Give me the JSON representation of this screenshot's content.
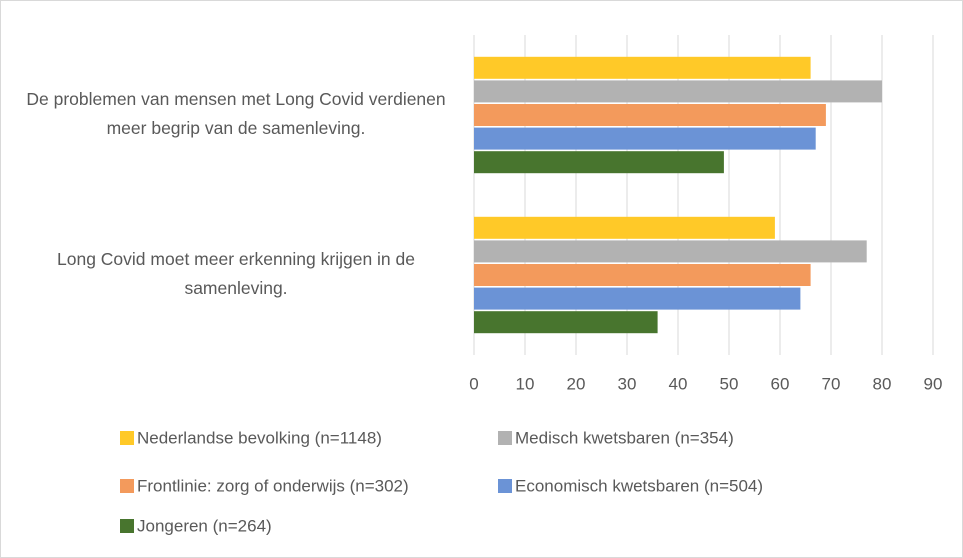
{
  "chart_data": {
    "type": "hbar",
    "categories": [
      "De problemen van mensen met Long Covid verdienen meer begrip van de samenleving.",
      "Long Covid moet meer erkenning krijgen in de samenleving."
    ],
    "series": [
      {
        "name": "Nederlandse bevolking (n=1148)",
        "color": "#ffc928",
        "values": [
          66,
          59
        ]
      },
      {
        "name": "Medisch kwetsbaren (n=354)",
        "color": "#b2b2b2",
        "values": [
          80,
          77
        ]
      },
      {
        "name": "Frontlinie: zorg of onderwijs (n=302)",
        "color": "#f39a5c",
        "values": [
          69,
          66
        ]
      },
      {
        "name": "Economisch kwetsbaren (n=504)",
        "color": "#6b93d6",
        "values": [
          67,
          64
        ]
      },
      {
        "name": "Jongeren (n=264)",
        "color": "#48752e",
        "values": [
          49,
          36
        ]
      }
    ],
    "xlim": [
      0,
      90
    ],
    "xticks": [
      0,
      10,
      20,
      30,
      40,
      50,
      60,
      70,
      80,
      90
    ],
    "grid": true,
    "legend": "bottom"
  }
}
